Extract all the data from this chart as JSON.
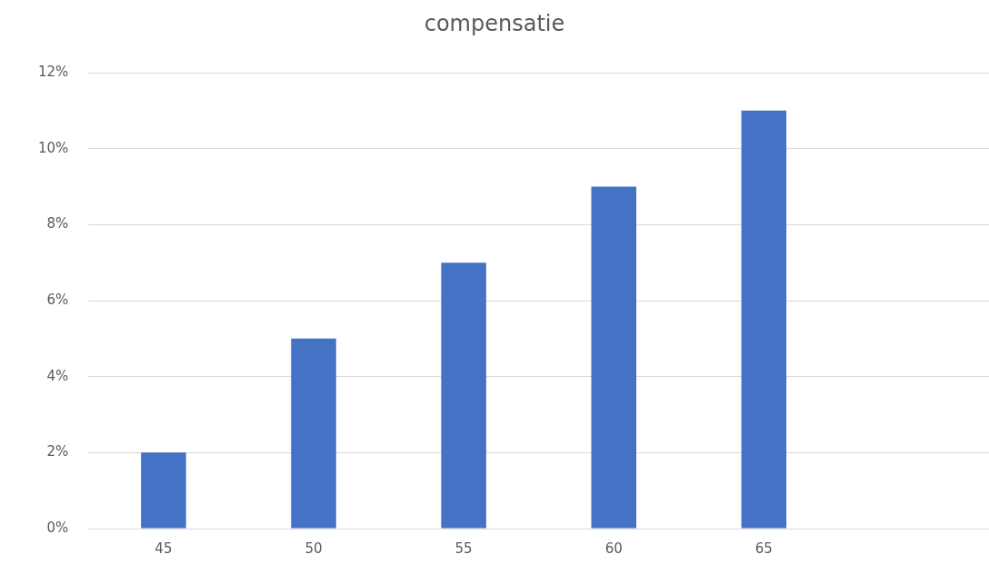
{
  "chart_data": {
    "type": "bar",
    "title": "compensatie",
    "categories": [
      "45",
      "50",
      "55",
      "60",
      "65",
      null
    ],
    "values": [
      2,
      5,
      7,
      9,
      11,
      null
    ],
    "color": "#4472c4",
    "ylim": [
      0,
      12
    ],
    "yticks": [
      {
        "value": 0,
        "label": "0%"
      },
      {
        "value": 2,
        "label": "2%"
      },
      {
        "value": 4,
        "label": "4%"
      },
      {
        "value": 6,
        "label": "6%"
      },
      {
        "value": 8,
        "label": "8%"
      },
      {
        "value": 10,
        "label": "10%"
      },
      {
        "value": 12,
        "label": "12%"
      }
    ],
    "grid": "y"
  }
}
